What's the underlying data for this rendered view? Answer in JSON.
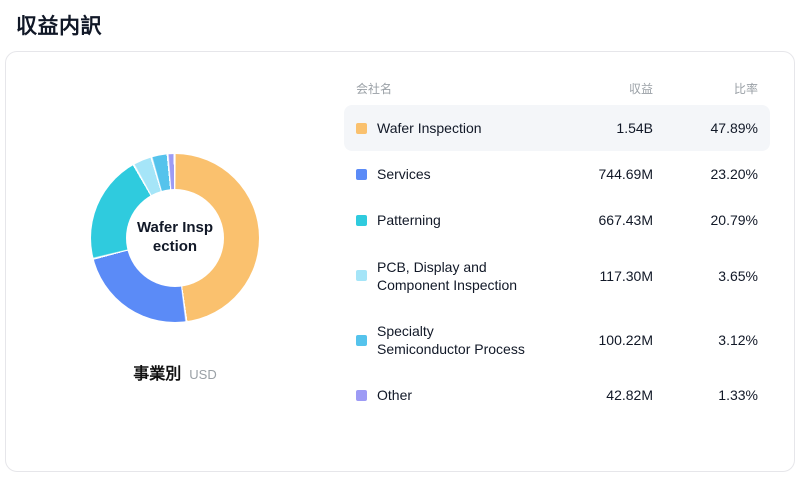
{
  "page": {
    "title": "収益内訳"
  },
  "chart": {
    "center_label": "Wafer Insp\nection",
    "caption": "事業別",
    "unit": "USD"
  },
  "table": {
    "headers": {
      "name": "会社名",
      "revenue": "収益",
      "ratio": "比率"
    },
    "rows": [
      {
        "name": "Wafer Inspection",
        "revenue": "1.54B",
        "ratio": "47.89%"
      },
      {
        "name": "Services",
        "revenue": "744.69M",
        "ratio": "23.20%"
      },
      {
        "name": "Patterning",
        "revenue": "667.43M",
        "ratio": "20.79%"
      },
      {
        "name": "PCB, Display and\nComponent Inspection",
        "revenue": "117.30M",
        "ratio": "3.65%"
      },
      {
        "name": "Specialty\nSemiconductor Process",
        "revenue": "100.22M",
        "ratio": "3.12%"
      },
      {
        "name": "Other",
        "revenue": "42.82M",
        "ratio": "1.33%"
      }
    ]
  },
  "chart_data": {
    "type": "pie",
    "donut": true,
    "title": "収益内訳",
    "subtitle": "事業別",
    "unit": "USD",
    "categories": [
      "Wafer Inspection",
      "Services",
      "Patterning",
      "PCB, Display and Component Inspection",
      "Specialty Semiconductor Process",
      "Other"
    ],
    "values": [
      47.89,
      23.2,
      20.79,
      3.65,
      3.12,
      1.33
    ],
    "revenues": [
      "1.54B",
      "744.69M",
      "667.43M",
      "117.30M",
      "100.22M",
      "42.82M"
    ],
    "colors": [
      "#FAC16E",
      "#5B8BF7",
      "#2FCBDE",
      "#A5E5F8",
      "#55C3EC",
      "#9D9BF5"
    ],
    "center_label": "Wafer Inspection",
    "legend_position": "right"
  }
}
